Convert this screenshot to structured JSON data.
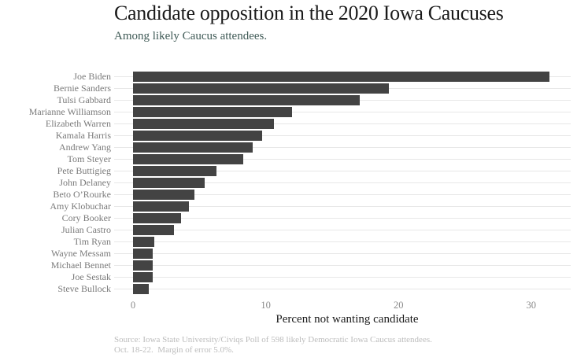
{
  "header": {
    "title": "Candidate opposition in the 2020 Iowa Caucuses",
    "subtitle": "Among likely Caucus attendees."
  },
  "chart_data": {
    "type": "bar",
    "orientation": "horizontal",
    "title": "Candidate opposition in the 2020 Iowa Caucuses",
    "subtitle": "Among likely Caucus attendees.",
    "categories": [
      "Joe Biden",
      "Bernie Sanders",
      "Tulsi Gabbard",
      "Marianne Williamson",
      "Elizabeth Warren",
      "Kamala Harris",
      "Andrew Yang",
      "Tom Steyer",
      "Pete Buttigieg",
      "John Delaney",
      "Beto O’Rourke",
      "Amy Klobuchar",
      "Cory Booker",
      "Julian Castro",
      "Tim Ryan",
      "Wayne Messam",
      "Michael Bennet",
      "Joe Sestak",
      "Steve Bullock"
    ],
    "values": [
      31.4,
      19.3,
      17.1,
      12.0,
      10.6,
      9.7,
      9.0,
      8.3,
      6.3,
      5.4,
      4.6,
      4.2,
      3.6,
      3.1,
      1.6,
      1.5,
      1.5,
      1.5,
      1.2
    ],
    "xlabel": "Percent not wanting candidate",
    "ylabel": "",
    "x_ticks": [
      0,
      10,
      20,
      30
    ],
    "xlim": [
      0,
      33
    ],
    "grid": "horizontal row lines only",
    "legend": "none",
    "bar_color": "#434343",
    "gridline_color": "#e7e7e7"
  },
  "footer": {
    "source_line1": "Source: Iowa State University/Civiqs Poll of 598 likely Democratic Iowa Caucus attendees.",
    "source_line2": "Oct. 18-22.  Margin of error 5.0%."
  },
  "colors": {
    "background": "#ffffff",
    "title_text": "#1a1a1a",
    "subtitle_text": "#3f5a56",
    "category_label_text": "#7a7a7a",
    "tick_label_text": "#8a8a8a",
    "caption_text": "#bcbcbc"
  }
}
